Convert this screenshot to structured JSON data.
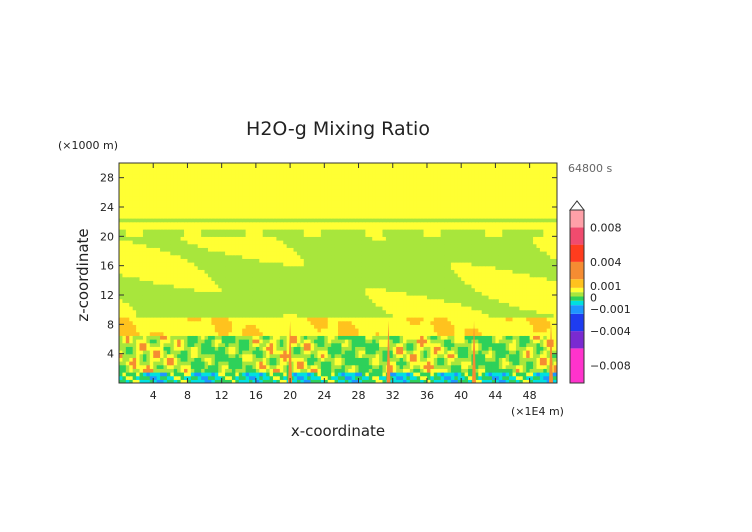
{
  "chart_data": {
    "type": "heatmap",
    "title": "H2O-g Mixing Ratio",
    "xlabel": "x-coordinate",
    "ylabel": "z-coordinate",
    "x_unit": "(×1E4 m)",
    "y_unit": "(×1000 m)",
    "time_label": "64800 s",
    "xlim": [
      0,
      51.2
    ],
    "ylim": [
      0,
      30
    ],
    "x_ticks": [
      4,
      8,
      12,
      16,
      20,
      24,
      28,
      32,
      36,
      40,
      44,
      48
    ],
    "y_ticks": [
      4,
      8,
      12,
      16,
      20,
      24,
      28
    ],
    "colorbar": {
      "labels": [
        "0.008",
        "0.004",
        "0.001",
        "0",
        "−0.001",
        "−0.004",
        "−0.008"
      ],
      "label_values": [
        0.008,
        0.004,
        0.001,
        0,
        -0.001,
        -0.004,
        -0.008
      ],
      "range": [
        -0.01,
        0.01
      ],
      "colors": [
        {
          "from": -0.01,
          "to": -0.006,
          "color": "#ff33cc"
        },
        {
          "from": -0.006,
          "to": -0.004,
          "color": "#7a2ad1"
        },
        {
          "from": -0.004,
          "to": -0.002,
          "color": "#1e3cf0"
        },
        {
          "from": -0.002,
          "to": -0.001,
          "color": "#1e96ff"
        },
        {
          "from": -0.001,
          "to": -0.0005,
          "color": "#00e0e0"
        },
        {
          "from": -0.0005,
          "to": 0,
          "color": "#2ed15a"
        },
        {
          "from": 0,
          "to": 0.0005,
          "color": "#a8e63c"
        },
        {
          "from": 0.0005,
          "to": 0.001,
          "color": "#ffff33"
        },
        {
          "from": 0.001,
          "to": 0.002,
          "color": "#ffc21e"
        },
        {
          "from": 0.002,
          "to": 0.004,
          "color": "#f58c32"
        },
        {
          "from": 0.004,
          "to": 0.006,
          "color": "#ff3c1e"
        },
        {
          "from": 0.006,
          "to": 0.008,
          "color": "#f04b6e"
        },
        {
          "from": 0.008,
          "to": 0.01,
          "color": "#ffa0a8"
        }
      ]
    }
  }
}
